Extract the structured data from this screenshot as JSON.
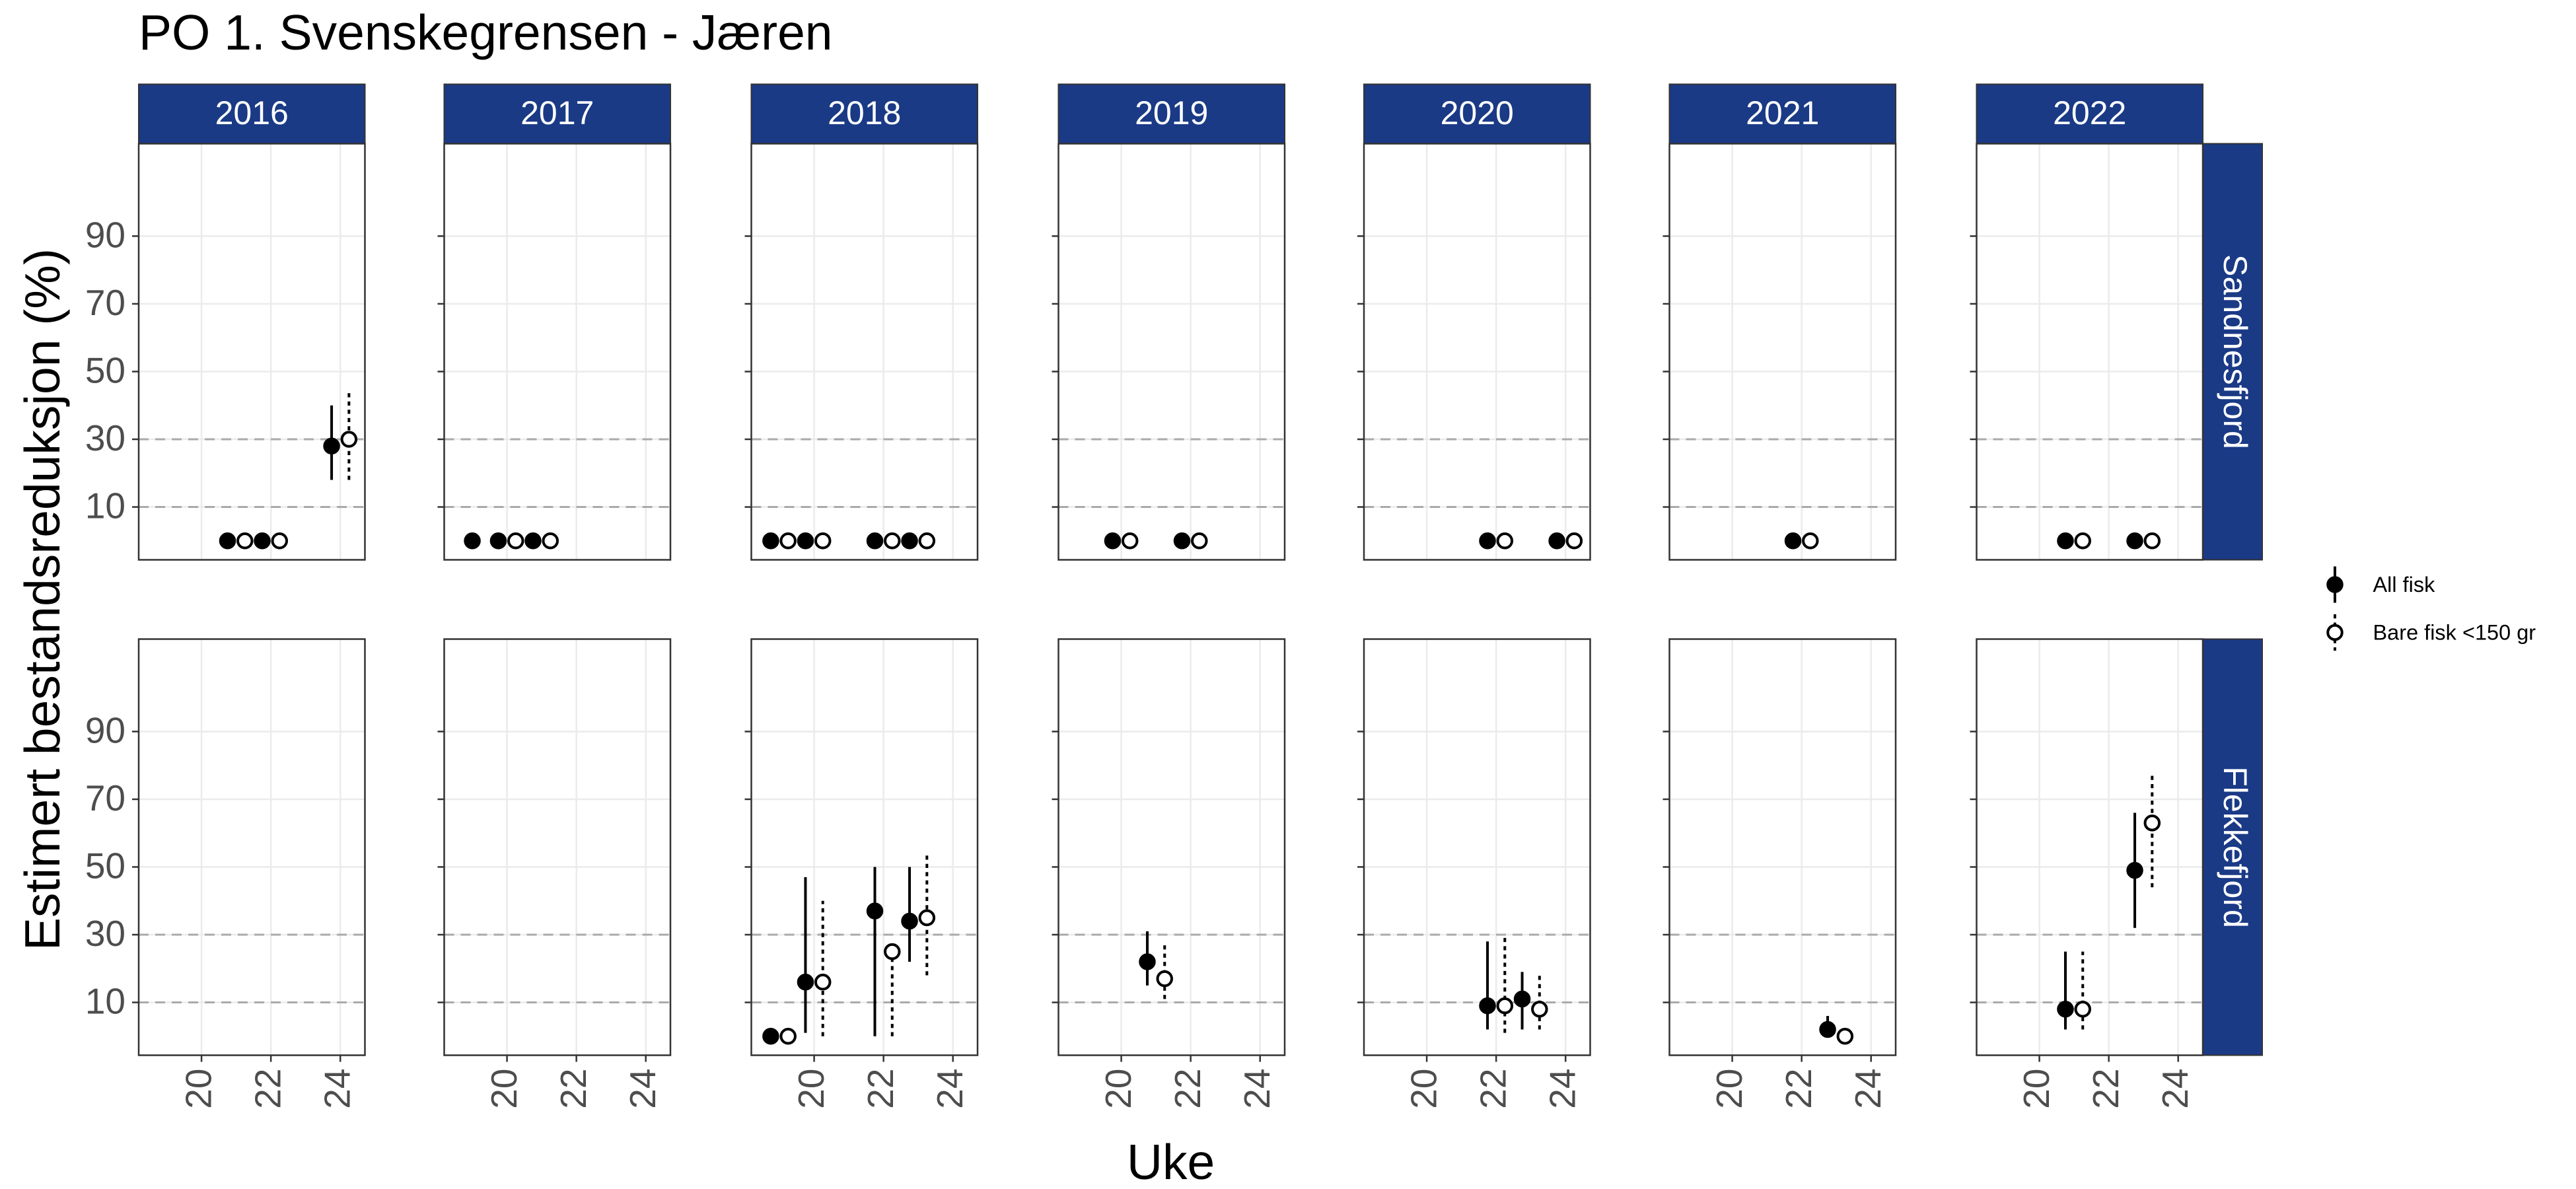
{
  "chart_data": {
    "type": "errorbar",
    "title": "PO 1. Svenskegrensen - Jæren",
    "x_label": "Uke",
    "y_label": "Estimert bestandsreduksjon (%)",
    "columns": [
      "2016",
      "2017",
      "2018",
      "2019",
      "2020",
      "2021",
      "2022"
    ],
    "rows": [
      "Sandnesfjord",
      "Flekkefjord"
    ],
    "xlim": [
      18.19,
      24.71
    ],
    "xticks": [
      20,
      22,
      24
    ],
    "ylim": [
      -5.6,
      117.3
    ],
    "yticks": [
      10,
      30,
      50,
      70,
      90
    ],
    "hlines": [
      10,
      30
    ],
    "grid": true,
    "series": [
      {
        "name": "All fisk",
        "color": "#000000",
        "marker": "filled",
        "line": "solid"
      },
      {
        "name": "Bare fisk <150 gr",
        "color": "#000000",
        "marker": "open",
        "line": "dotted"
      }
    ],
    "panels": [
      {
        "series": [
          {
            "x": [
              21,
              22,
              24
            ],
            "values": [
              0,
              0,
              28
            ],
            "lower": [
              null,
              null,
              18
            ],
            "upper": [
              null,
              null,
              40
            ]
          },
          {
            "x": [
              21,
              22,
              24
            ],
            "values": [
              0,
              0,
              30
            ],
            "lower": [
              null,
              null,
              18
            ],
            "upper": [
              null,
              null,
              44
            ]
          }
        ]
      },
      {
        "series": [
          {
            "x": [
              19,
              20,
              21
            ],
            "values": [
              0,
              0,
              0
            ],
            "lower": [
              null,
              null,
              null
            ],
            "upper": [
              null,
              null,
              null
            ]
          },
          {
            "x": [
              20,
              21
            ],
            "values": [
              0,
              0
            ],
            "lower": [
              null,
              null
            ],
            "upper": [
              null,
              null
            ]
          }
        ]
      },
      {
        "series": [
          {
            "x": [
              19,
              20,
              22,
              23
            ],
            "values": [
              0,
              0,
              0,
              0
            ],
            "lower": [
              null,
              null,
              null,
              null
            ],
            "upper": [
              null,
              null,
              null,
              null
            ]
          },
          {
            "x": [
              19,
              20,
              22,
              23
            ],
            "values": [
              0,
              0,
              0,
              0
            ],
            "lower": [
              null,
              null,
              null,
              null
            ],
            "upper": [
              null,
              null,
              null,
              null
            ]
          }
        ]
      },
      {
        "series": [
          {
            "x": [
              20,
              22
            ],
            "values": [
              0,
              0
            ],
            "lower": [
              null,
              null
            ],
            "upper": [
              null,
              null
            ]
          },
          {
            "x": [
              20,
              22
            ],
            "values": [
              0,
              0
            ],
            "lower": [
              null,
              null
            ],
            "upper": [
              null,
              null
            ]
          }
        ]
      },
      {
        "series": [
          {
            "x": [
              22,
              24
            ],
            "values": [
              0,
              0
            ],
            "lower": [
              null,
              null
            ],
            "upper": [
              null,
              null
            ]
          },
          {
            "x": [
              22,
              24
            ],
            "values": [
              0,
              0
            ],
            "lower": [
              null,
              null
            ],
            "upper": [
              null,
              null
            ]
          }
        ]
      },
      {
        "series": [
          {
            "x": [
              22
            ],
            "values": [
              0
            ],
            "lower": [
              null
            ],
            "upper": [
              null
            ]
          },
          {
            "x": [
              22
            ],
            "values": [
              0
            ],
            "lower": [
              null
            ],
            "upper": [
              null
            ]
          }
        ]
      },
      {
        "series": [
          {
            "x": [
              21,
              23
            ],
            "values": [
              0,
              0
            ],
            "lower": [
              null,
              null
            ],
            "upper": [
              null,
              null
            ]
          },
          {
            "x": [
              21,
              23
            ],
            "values": [
              0,
              0
            ],
            "lower": [
              null,
              null
            ],
            "upper": [
              null,
              null
            ]
          }
        ]
      },
      {
        "series": [
          {
            "x": [],
            "values": [],
            "lower": [],
            "upper": []
          },
          {
            "x": [],
            "values": [],
            "lower": [],
            "upper": []
          }
        ]
      },
      {
        "series": [
          {
            "x": [],
            "values": [],
            "lower": [],
            "upper": []
          },
          {
            "x": [],
            "values": [],
            "lower": [],
            "upper": []
          }
        ]
      },
      {
        "series": [
          {
            "x": [
              19,
              20,
              22,
              23
            ],
            "values": [
              0,
              16,
              37,
              34
            ],
            "lower": [
              null,
              1,
              0,
              22
            ],
            "upper": [
              null,
              47,
              50,
              50
            ]
          },
          {
            "x": [
              19,
              20,
              22,
              23
            ],
            "values": [
              0,
              16,
              25,
              35
            ],
            "lower": [
              null,
              0,
              0,
              18
            ],
            "upper": [
              null,
              40,
              27,
              54
            ]
          }
        ]
      },
      {
        "series": [
          {
            "x": [
              21
            ],
            "values": [
              22
            ],
            "lower": [
              15
            ],
            "upper": [
              31
            ]
          },
          {
            "x": [
              21
            ],
            "values": [
              17
            ],
            "lower": [
              11
            ],
            "upper": [
              27
            ]
          }
        ]
      },
      {
        "series": [
          {
            "x": [
              22,
              23
            ],
            "values": [
              9,
              11
            ],
            "lower": [
              2,
              2
            ],
            "upper": [
              28,
              19
            ]
          },
          {
            "x": [
              22,
              23
            ],
            "values": [
              9,
              8
            ],
            "lower": [
              1,
              2
            ],
            "upper": [
              30,
              18
            ]
          }
        ]
      },
      {
        "series": [
          {
            "x": [
              23
            ],
            "values": [
              2
            ],
            "lower": [
              0
            ],
            "upper": [
              6
            ]
          },
          {
            "x": [
              23
            ],
            "values": [
              0
            ],
            "lower": [
              null
            ],
            "upper": [
              null
            ]
          }
        ]
      },
      {
        "series": [
          {
            "x": [
              21,
              23
            ],
            "values": [
              8,
              49
            ],
            "lower": [
              2,
              32
            ],
            "upper": [
              25,
              66
            ]
          },
          {
            "x": [
              21,
              23
            ],
            "values": [
              8,
              63
            ],
            "lower": [
              2,
              44
            ],
            "upper": [
              25,
              78
            ]
          }
        ]
      }
    ]
  }
}
